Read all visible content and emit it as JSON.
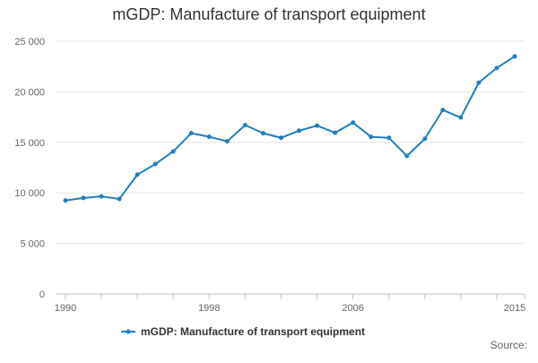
{
  "chart_data": {
    "type": "line",
    "title": "mGDP: Manufacture of transport equipment",
    "xlabel": "",
    "ylabel": "",
    "x": [
      1990,
      1991,
      1992,
      1993,
      1994,
      1995,
      1996,
      1997,
      1998,
      1999,
      2000,
      2001,
      2002,
      2003,
      2004,
      2005,
      2006,
      2007,
      2008,
      2009,
      2010,
      2011,
      2012,
      2013,
      2014,
      2015
    ],
    "series": [
      {
        "name": "mGDP: Manufacture of transport equipment",
        "color": "#1f7fbf",
        "values": [
          9250,
          9500,
          9650,
          9400,
          11800,
          12850,
          14100,
          15900,
          15550,
          15100,
          16700,
          15900,
          15450,
          16150,
          16650,
          15950,
          16950,
          15550,
          15450,
          13650,
          15350,
          18200,
          17450,
          20900,
          22350,
          23500
        ]
      }
    ],
    "xticks": [
      "1990",
      "1998",
      "2006",
      "2015"
    ],
    "yticks": [
      "0",
      "5 000",
      "10 000",
      "15 000",
      "20 000",
      "25 000"
    ],
    "ylim": [
      0,
      25000
    ],
    "grid": true,
    "legend_position": "bottom-center",
    "source_label": "Source:"
  }
}
